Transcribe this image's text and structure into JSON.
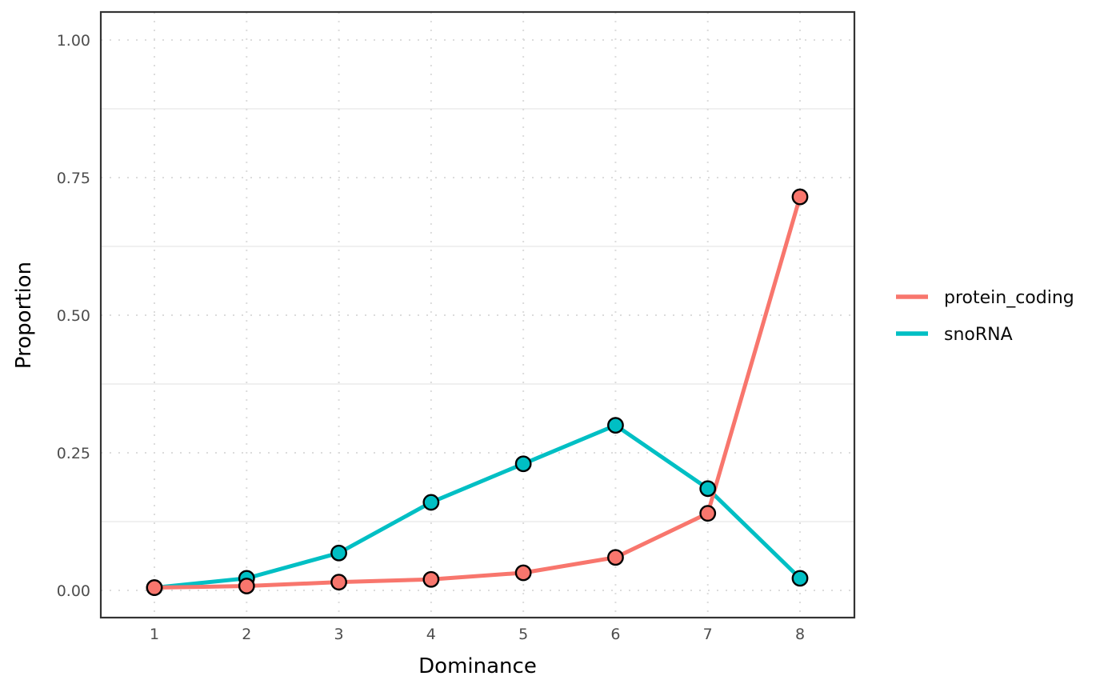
{
  "chart_data": {
    "type": "line",
    "title": "",
    "xlabel": "Dominance",
    "ylabel": "Proportion",
    "x": [
      1,
      2,
      3,
      4,
      5,
      6,
      7,
      8
    ],
    "series": [
      {
        "name": "protein_coding",
        "color": "#F8766D",
        "values": [
          0.005,
          0.008,
          0.015,
          0.02,
          0.032,
          0.06,
          0.14,
          0.715
        ]
      },
      {
        "name": "snoRNA",
        "color": "#00BFC4",
        "values": [
          0.005,
          0.022,
          0.068,
          0.16,
          0.23,
          0.3,
          0.185,
          0.022
        ]
      }
    ],
    "xticks": {
      "values": [
        1,
        2,
        3,
        4,
        5,
        6,
        7,
        8
      ],
      "labels": [
        "1",
        "2",
        "3",
        "4",
        "5",
        "6",
        "7",
        "8"
      ]
    },
    "yticks": {
      "values": [
        0,
        0.25,
        0.5,
        0.75,
        1.0
      ],
      "labels": [
        "0.00",
        "0.25",
        "0.50",
        "0.75",
        "1.00"
      ]
    },
    "ylim": [
      0,
      1
    ],
    "xlim": [
      1,
      8
    ],
    "grid": {
      "major": "dotted",
      "minor": "solid",
      "minor_y_values": [
        0.125,
        0.375,
        0.625,
        0.875
      ]
    },
    "legend_position": "right",
    "style_colors": {
      "point_outline": "#000000",
      "panel_border": "#333333",
      "grid_major": "#dcdcdc",
      "grid_minor": "#ececec",
      "tick_label": "#4d4d4d",
      "axis_title": "#000000"
    }
  }
}
